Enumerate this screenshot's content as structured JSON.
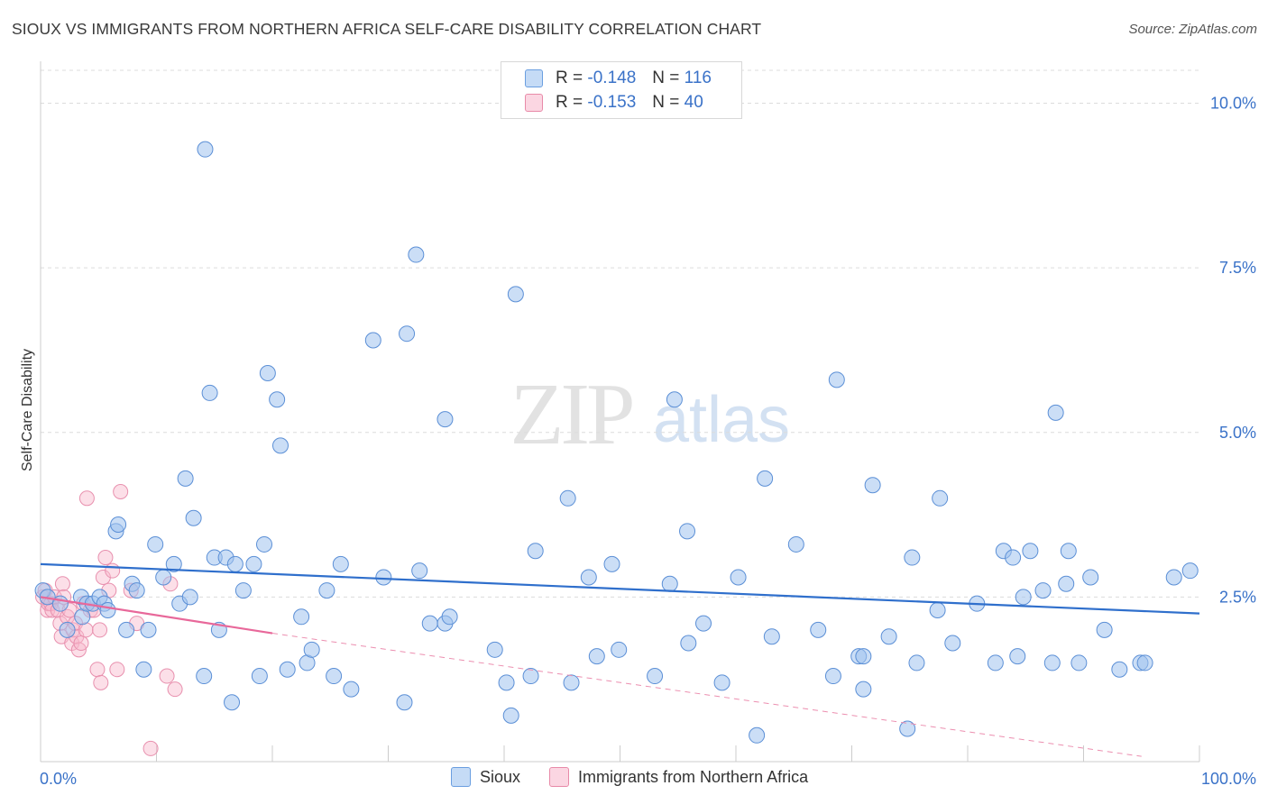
{
  "header": {
    "title": "SIOUX VS IMMIGRANTS FROM NORTHERN AFRICA SELF-CARE DISABILITY CORRELATION CHART",
    "source": "Source: ZipAtlas.com"
  },
  "watermark": {
    "zip": "ZIP",
    "atlas": "atlas"
  },
  "legend": {
    "rows": [
      {
        "r_label": "R = ",
        "r_value": "-0.148",
        "n_label": "N = ",
        "n_value": "116",
        "color": "#a9c8f0",
        "border": "#6a9ee0"
      },
      {
        "r_label": "R = ",
        "r_value": "-0.153",
        "n_label": "N = ",
        "n_value": "40",
        "color": "#f8c5d5",
        "border": "#e88aa8"
      }
    ]
  },
  "bottom_legend": [
    {
      "label": "Sioux",
      "color": "#a9c8f0",
      "border": "#6a9ee0"
    },
    {
      "label": "Immigrants from Northern Africa",
      "color": "#f8c5d5",
      "border": "#e88aa8"
    }
  ],
  "chart_data": {
    "type": "scatter",
    "title": "SIOUX VS IMMIGRANTS FROM NORTHERN AFRICA SELF-CARE DISABILITY CORRELATION CHART",
    "ylabel": "Self-Care Disability",
    "xlabel": "",
    "xlim": [
      0,
      100
    ],
    "ylim": [
      0,
      10.5
    ],
    "x_tick_labels": [
      "0.0%",
      "100.0%"
    ],
    "y_ticks": [
      2.5,
      5.0,
      7.5,
      10.0
    ],
    "y_tick_labels": [
      "2.5%",
      "5.0%",
      "7.5%",
      "10.0%"
    ],
    "grid": true,
    "series": [
      {
        "name": "Sioux",
        "color": "#7aaae6",
        "trend": {
          "x": [
            0,
            100
          ],
          "y": [
            3.0,
            2.25
          ]
        },
        "points": [
          [
            0.2,
            2.6
          ],
          [
            0.6,
            2.5
          ],
          [
            1.7,
            2.4
          ],
          [
            2.3,
            2.0
          ],
          [
            3.6,
            2.2
          ],
          [
            3.5,
            2.5
          ],
          [
            4.0,
            2.4
          ],
          [
            4.5,
            2.4
          ],
          [
            5.1,
            2.5
          ],
          [
            5.5,
            2.4
          ],
          [
            5.8,
            2.3
          ],
          [
            6.5,
            3.5
          ],
          [
            6.7,
            3.6
          ],
          [
            7.4,
            2.0
          ],
          [
            7.9,
            2.7
          ],
          [
            8.3,
            2.6
          ],
          [
            8.9,
            1.4
          ],
          [
            9.3,
            2.0
          ],
          [
            9.9,
            3.3
          ],
          [
            10.6,
            2.8
          ],
          [
            11.5,
            3.0
          ],
          [
            12.0,
            2.4
          ],
          [
            12.5,
            4.3
          ],
          [
            12.9,
            2.5
          ],
          [
            13.2,
            3.7
          ],
          [
            14.1,
            1.3
          ],
          [
            14.2,
            9.3
          ],
          [
            14.6,
            5.6
          ],
          [
            15.0,
            3.1
          ],
          [
            15.4,
            2.0
          ],
          [
            16.0,
            3.1
          ],
          [
            16.5,
            0.9
          ],
          [
            16.8,
            3.0
          ],
          [
            17.5,
            2.6
          ],
          [
            18.4,
            3.0
          ],
          [
            18.9,
            1.3
          ],
          [
            19.3,
            3.3
          ],
          [
            19.6,
            5.9
          ],
          [
            20.4,
            5.5
          ],
          [
            20.7,
            4.8
          ],
          [
            21.3,
            1.4
          ],
          [
            22.5,
            2.2
          ],
          [
            23.0,
            1.5
          ],
          [
            23.4,
            1.7
          ],
          [
            24.7,
            2.6
          ],
          [
            25.3,
            1.3
          ],
          [
            25.9,
            3.0
          ],
          [
            26.8,
            1.1
          ],
          [
            28.7,
            6.4
          ],
          [
            29.6,
            2.8
          ],
          [
            31.4,
            0.9
          ],
          [
            31.6,
            6.5
          ],
          [
            32.4,
            7.7
          ],
          [
            32.7,
            2.9
          ],
          [
            33.6,
            2.1
          ],
          [
            34.9,
            2.1
          ],
          [
            35.3,
            2.2
          ],
          [
            34.9,
            5.2
          ],
          [
            39.2,
            1.7
          ],
          [
            40.2,
            1.2
          ],
          [
            41.0,
            7.1
          ],
          [
            40.6,
            0.7
          ],
          [
            42.3,
            1.3
          ],
          [
            42.7,
            3.2
          ],
          [
            45.5,
            4.0
          ],
          [
            45.8,
            1.2
          ],
          [
            47.3,
            2.8
          ],
          [
            48.0,
            1.6
          ],
          [
            49.3,
            3.0
          ],
          [
            49.9,
            1.7
          ],
          [
            53.0,
            1.3
          ],
          [
            54.3,
            2.7
          ],
          [
            54.7,
            5.5
          ],
          [
            55.8,
            3.5
          ],
          [
            55.9,
            1.8
          ],
          [
            57.2,
            2.1
          ],
          [
            58.8,
            1.2
          ],
          [
            60.2,
            2.8
          ],
          [
            61.8,
            0.4
          ],
          [
            62.5,
            4.3
          ],
          [
            63.1,
            1.9
          ],
          [
            65.2,
            3.3
          ],
          [
            67.1,
            2.0
          ],
          [
            68.4,
            1.3
          ],
          [
            68.7,
            5.8
          ],
          [
            70.6,
            1.6
          ],
          [
            71.0,
            1.6
          ],
          [
            71.0,
            1.1
          ],
          [
            71.8,
            4.2
          ],
          [
            73.2,
            1.9
          ],
          [
            74.8,
            0.5
          ],
          [
            75.2,
            3.1
          ],
          [
            75.6,
            1.5
          ],
          [
            77.4,
            2.3
          ],
          [
            77.6,
            4.0
          ],
          [
            78.7,
            1.8
          ],
          [
            80.8,
            2.4
          ],
          [
            82.4,
            1.5
          ],
          [
            83.1,
            3.2
          ],
          [
            83.9,
            3.1
          ],
          [
            84.3,
            1.6
          ],
          [
            84.8,
            2.5
          ],
          [
            85.4,
            3.2
          ],
          [
            86.5,
            2.6
          ],
          [
            87.6,
            5.3
          ],
          [
            88.7,
            3.2
          ],
          [
            87.3,
            1.5
          ],
          [
            89.6,
            1.5
          ],
          [
            88.5,
            2.7
          ],
          [
            90.6,
            2.8
          ],
          [
            91.8,
            2.0
          ],
          [
            93.1,
            1.4
          ],
          [
            94.9,
            1.5
          ],
          [
            95.3,
            1.5
          ],
          [
            97.8,
            2.8
          ],
          [
            99.2,
            2.9
          ]
        ]
      },
      {
        "name": "Immigrants from Northern Africa",
        "color": "#f0a0bb",
        "trend": {
          "x": [
            0,
            20
          ],
          "y": [
            2.5,
            1.95
          ]
        },
        "trend_dashed": {
          "x": [
            20,
            95
          ],
          "y": [
            1.95,
            0.08
          ]
        },
        "points": [
          [
            0.2,
            2.5
          ],
          [
            0.4,
            2.6
          ],
          [
            0.6,
            2.3
          ],
          [
            0.7,
            2.4
          ],
          [
            0.9,
            2.4
          ],
          [
            1.0,
            2.3
          ],
          [
            1.2,
            2.5
          ],
          [
            1.5,
            2.3
          ],
          [
            1.7,
            2.1
          ],
          [
            1.8,
            1.9
          ],
          [
            1.9,
            2.7
          ],
          [
            2.0,
            2.5
          ],
          [
            2.3,
            2.2
          ],
          [
            2.5,
            2.3
          ],
          [
            2.7,
            1.8
          ],
          [
            2.8,
            2.0
          ],
          [
            3.0,
            2.1
          ],
          [
            3.1,
            1.9
          ],
          [
            3.3,
            1.7
          ],
          [
            3.5,
            1.8
          ],
          [
            3.7,
            2.4
          ],
          [
            3.9,
            2.0
          ],
          [
            4.0,
            4.0
          ],
          [
            4.3,
            2.3
          ],
          [
            4.6,
            2.3
          ],
          [
            4.9,
            1.4
          ],
          [
            5.1,
            2.0
          ],
          [
            5.2,
            1.2
          ],
          [
            5.4,
            2.8
          ],
          [
            5.6,
            3.1
          ],
          [
            5.9,
            2.6
          ],
          [
            6.2,
            2.9
          ],
          [
            6.6,
            1.4
          ],
          [
            6.9,
            4.1
          ],
          [
            7.8,
            2.6
          ],
          [
            8.3,
            2.1
          ],
          [
            9.5,
            0.2
          ],
          [
            10.9,
            1.3
          ],
          [
            11.2,
            2.7
          ],
          [
            11.6,
            1.1
          ]
        ]
      }
    ]
  }
}
